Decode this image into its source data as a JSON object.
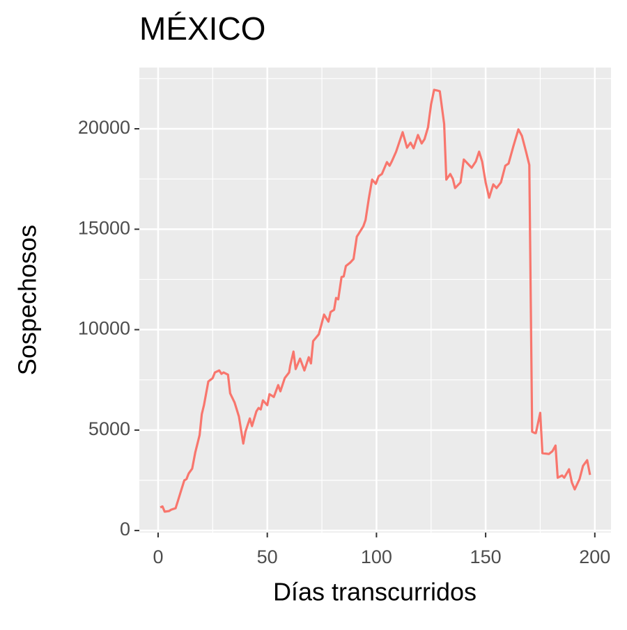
{
  "chart_data": {
    "type": "line",
    "title": "MÉXICO",
    "x_label": "Días transcurridos",
    "y_label": "Sospechosos",
    "x": [
      1,
      2,
      3,
      5,
      6,
      8,
      9,
      10.5,
      12,
      13,
      14,
      15.6,
      17,
      19,
      20,
      21,
      23,
      25,
      26,
      28,
      29,
      30,
      32,
      33,
      35,
      37,
      39,
      40,
      42,
      43,
      45,
      46,
      47,
      48,
      50,
      51,
      53,
      55,
      56,
      58,
      60,
      60.5,
      62,
      63,
      65,
      67,
      69,
      70,
      71,
      73.6,
      76,
      78,
      79,
      80.6,
      81.5,
      82.5,
      84,
      85,
      86,
      88,
      89.5,
      91,
      92,
      94,
      95,
      96.5,
      98,
      99.7,
      101,
      102.5,
      104.8,
      106,
      107,
      109,
      112,
      114,
      115.6,
      117,
      119,
      120.7,
      122,
      123.6,
      125,
      126.4,
      127.7,
      129,
      131,
      132,
      133.8,
      135,
      136,
      138.5,
      140,
      143.6,
      145.5,
      147,
      148.4,
      150,
      151.6,
      153.5,
      155,
      157,
      159,
      160.5,
      162.7,
      165,
      166.6,
      168.5,
      170,
      171.3,
      172.6,
      173,
      175,
      176,
      179,
      180.6,
      182,
      183,
      185,
      186,
      188.2,
      189.5,
      190.8,
      193,
      194.6,
      196.5,
      197.8
    ],
    "series": [
      {
        "name": "Sospechosos",
        "color": "#F8766D",
        "values": [
          1150,
          1200,
          940,
          970,
          1040,
          1110,
          1450,
          1980,
          2500,
          2560,
          2840,
          3080,
          3880,
          4750,
          5790,
          6240,
          7420,
          7590,
          7870,
          7970,
          7800,
          7870,
          7760,
          6830,
          6380,
          5680,
          4330,
          4920,
          5580,
          5200,
          5930,
          6100,
          6030,
          6480,
          6240,
          6790,
          6650,
          7240,
          6930,
          7590,
          7870,
          8210,
          8910,
          8040,
          8560,
          7970,
          8630,
          8320,
          9430,
          9770,
          10750,
          10400,
          10880,
          10990,
          11580,
          11510,
          12620,
          12650,
          13170,
          13340,
          13520,
          14630,
          14800,
          15150,
          15460,
          16530,
          17470,
          17260,
          17640,
          17750,
          18340,
          18160,
          18370,
          18860,
          19830,
          19060,
          19310,
          19030,
          19690,
          19270,
          19480,
          20070,
          21210,
          21940,
          21910,
          21870,
          20240,
          17470,
          17750,
          17500,
          17050,
          17330,
          18470,
          18060,
          18370,
          18860,
          18370,
          17330,
          16570,
          17230,
          17050,
          17330,
          18160,
          18270,
          19130,
          19970,
          19650,
          18860,
          18200,
          4920,
          4850,
          4850,
          5860,
          3850,
          3810,
          3950,
          4230,
          2630,
          2740,
          2630,
          3050,
          2390,
          2050,
          2560,
          3220,
          3500,
          2770
        ]
      }
    ],
    "xlim": [
      -8.6,
      207.4
    ],
    "ylim": [
      -100,
      23050
    ],
    "xticks": [
      0,
      50,
      100,
      150,
      200
    ],
    "yticks": [
      0,
      5000,
      10000,
      15000,
      20000
    ],
    "x_minor_ticks": [
      25,
      75,
      125,
      175
    ],
    "y_minor_ticks": [
      2500,
      7500,
      12500,
      17500,
      22500
    ],
    "grid": true
  }
}
